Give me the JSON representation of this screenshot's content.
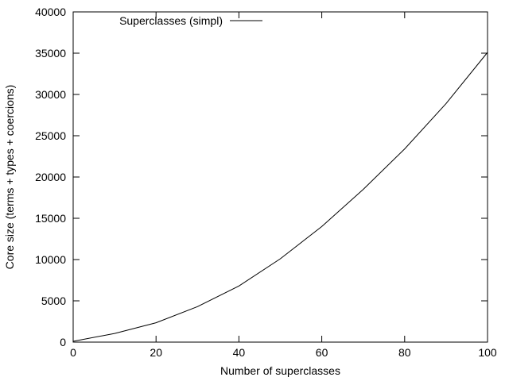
{
  "chart_data": {
    "type": "line",
    "title": "",
    "xlabel": "Number of superclasses",
    "ylabel": "Core size (terms + types + coercions)",
    "xlim": [
      0,
      100
    ],
    "ylim": [
      0,
      40000
    ],
    "x_ticks": [
      0,
      20,
      40,
      60,
      80,
      100
    ],
    "y_ticks": [
      0,
      5000,
      10000,
      15000,
      20000,
      25000,
      30000,
      35000,
      40000
    ],
    "x_tick_labels": [
      "0",
      "20",
      "40",
      "60",
      "80",
      "100"
    ],
    "y_tick_labels": [
      "0",
      "5000",
      "10000",
      "15000",
      "20000",
      "25000",
      "30000",
      "35000",
      "40000"
    ],
    "legend_position": "top-left",
    "grid": false,
    "series": [
      {
        "name": "Superclasses (simpl)",
        "color": "#000000",
        "x": [
          0,
          10,
          20,
          30,
          40,
          50,
          60,
          70,
          80,
          90,
          100
        ],
        "y": [
          100,
          1050,
          2350,
          4300,
          6800,
          10100,
          14000,
          18500,
          23400,
          28900,
          35100
        ]
      }
    ]
  }
}
